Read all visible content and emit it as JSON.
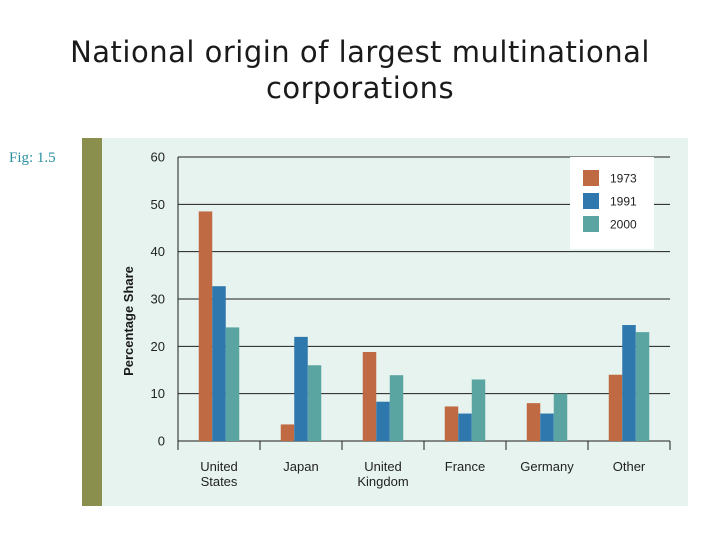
{
  "slide": {
    "title": "National origin of largest multinational corporations",
    "fig_label": "Fig: 1.5"
  },
  "colors": {
    "sidebar": "#8a8f4e",
    "panel_background": "#e6f3ee",
    "fig_label": "#2a8fa0",
    "series_1973": "#c06a43",
    "series_1991": "#2e78ad",
    "series_2000": "#5aa5a2"
  },
  "chart_data": {
    "type": "bar",
    "title": "",
    "xlabel": "",
    "ylabel": "Percentage Share",
    "ylim": [
      0,
      60
    ],
    "yticks": [
      0,
      10,
      20,
      30,
      40,
      50,
      60
    ],
    "grid": true,
    "legend_position": "top-right",
    "categories": [
      [
        "United",
        "States"
      ],
      [
        "Japan"
      ],
      [
        "United",
        "Kingdom"
      ],
      [
        "France"
      ],
      [
        "Germany"
      ],
      [
        "Other"
      ]
    ],
    "series": [
      {
        "name": "1973",
        "color": "#c06a43",
        "values": [
          48.5,
          3.5,
          18.8,
          7.3,
          8.0,
          14.0
        ]
      },
      {
        "name": "1991",
        "color": "#2e78ad",
        "values": [
          32.7,
          22.0,
          8.3,
          5.8,
          5.8,
          24.5
        ]
      },
      {
        "name": "2000",
        "color": "#5aa5a2",
        "values": [
          24.0,
          16.0,
          13.9,
          13.0,
          10.0,
          23.0
        ]
      }
    ]
  }
}
